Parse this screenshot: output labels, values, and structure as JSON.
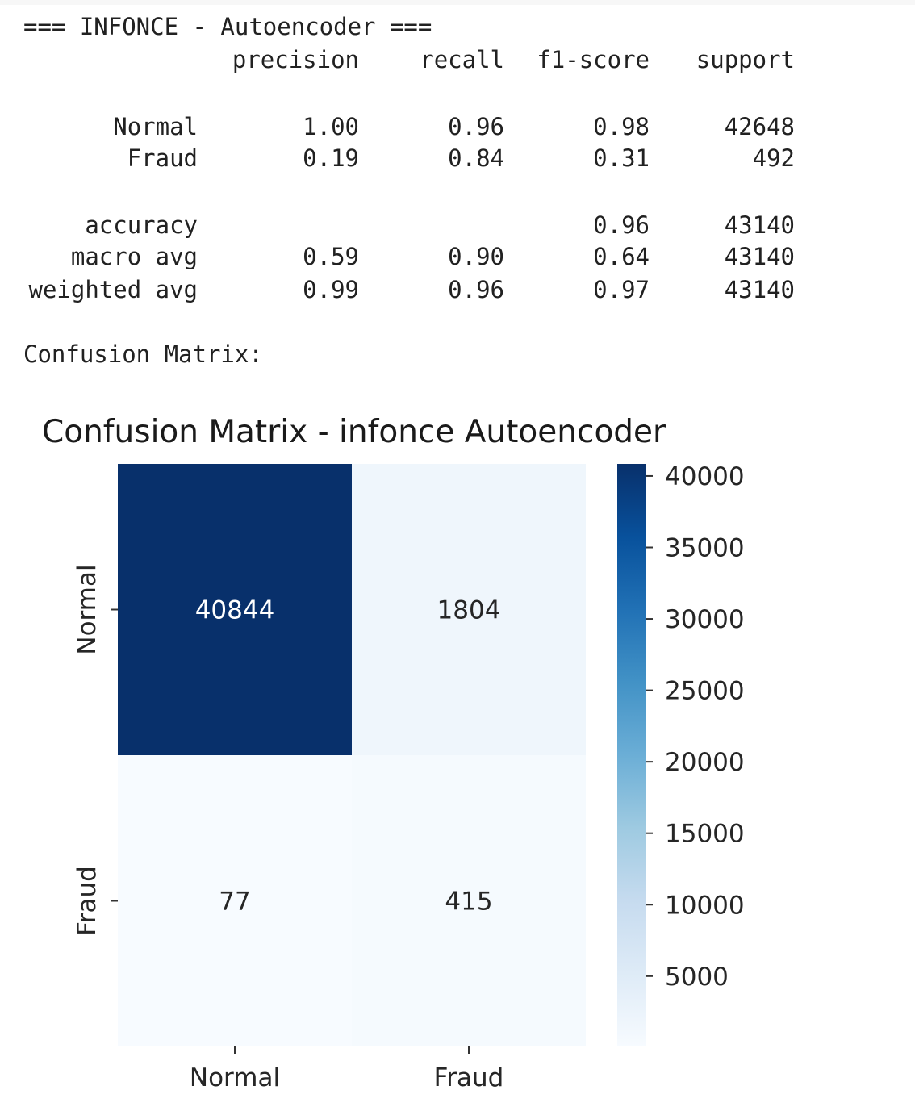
{
  "report": {
    "header": "=== INFONCE - Autoencoder ===",
    "columns": [
      "precision",
      "recall",
      "f1-score",
      "support"
    ],
    "class_rows": [
      {
        "label": "Normal",
        "precision": "1.00",
        "recall": "0.96",
        "f1": "0.98",
        "support": "42648"
      },
      {
        "label": "Fraud",
        "precision": "0.19",
        "recall": "0.84",
        "f1": "0.31",
        "support": "492"
      }
    ],
    "accuracy_row": {
      "label": "accuracy",
      "f1": "0.96",
      "support": "43140"
    },
    "avg_rows": [
      {
        "label": "macro avg",
        "precision": "0.59",
        "recall": "0.90",
        "f1": "0.64",
        "support": "43140"
      },
      {
        "label": "weighted avg",
        "precision": "0.99",
        "recall": "0.96",
        "f1": "0.97",
        "support": "43140"
      }
    ],
    "confusion_label": "Confusion Matrix:"
  },
  "chart_data": {
    "type": "heatmap",
    "title": "Confusion Matrix - infonce Autoencoder",
    "row_labels": [
      "Normal",
      "Fraud"
    ],
    "col_labels": [
      "Normal",
      "Fraud"
    ],
    "matrix": [
      [
        40844,
        1804
      ],
      [
        77,
        415
      ]
    ],
    "annotations": [
      [
        "40844",
        "1804"
      ],
      [
        "77",
        "415"
      ]
    ],
    "colormap": "Blues",
    "colorbar": {
      "min": 77,
      "max": 40844,
      "ticks": [
        5000,
        10000,
        15000,
        20000,
        25000,
        30000,
        35000,
        40000
      ],
      "tick_labels": [
        "5000",
        "10000",
        "15000",
        "20000",
        "25000",
        "30000",
        "35000",
        "40000"
      ]
    },
    "colors": {
      "low": "#f7fbff",
      "high": "#08306b",
      "text_dark": "#262626",
      "text_light": "#ffffff"
    }
  }
}
